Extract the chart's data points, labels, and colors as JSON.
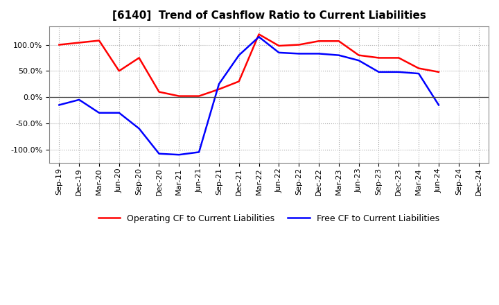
{
  "title": "[6140]  Trend of Cashflow Ratio to Current Liabilities",
  "x_labels": [
    "Sep-19",
    "Dec-19",
    "Mar-20",
    "Jun-20",
    "Sep-20",
    "Dec-20",
    "Mar-21",
    "Jun-21",
    "Sep-21",
    "Dec-21",
    "Mar-22",
    "Jun-22",
    "Sep-22",
    "Dec-22",
    "Mar-23",
    "Jun-23",
    "Sep-23",
    "Dec-23",
    "Mar-24",
    "Jun-24",
    "Sep-24",
    "Dec-24"
  ],
  "operating_cf": [
    100.0,
    104.0,
    108.0,
    50.0,
    75.0,
    10.0,
    2.0,
    2.0,
    15.0,
    30.0,
    120.0,
    98.0,
    100.0,
    107.0,
    107.0,
    80.0,
    75.0,
    75.0,
    55.0,
    48.0,
    null,
    null
  ],
  "free_cf": [
    -15.0,
    -5.0,
    -30.0,
    -30.0,
    -60.0,
    -108.0,
    -110.0,
    -105.0,
    25.0,
    80.0,
    115.0,
    85.0,
    83.0,
    83.0,
    80.0,
    70.0,
    48.0,
    48.0,
    45.0,
    -15.0,
    null,
    null
  ],
  "ylim": [
    -125.0,
    135.0
  ],
  "yticks": [
    -100.0,
    -50.0,
    0.0,
    50.0,
    100.0
  ],
  "operating_color": "#FF0000",
  "free_color": "#0000FF",
  "background_color": "#FFFFFF",
  "legend_op": "Operating CF to Current Liabilities",
  "legend_free": "Free CF to Current Liabilities",
  "title_fontsize": 11,
  "tick_fontsize": 8,
  "legend_fontsize": 9
}
